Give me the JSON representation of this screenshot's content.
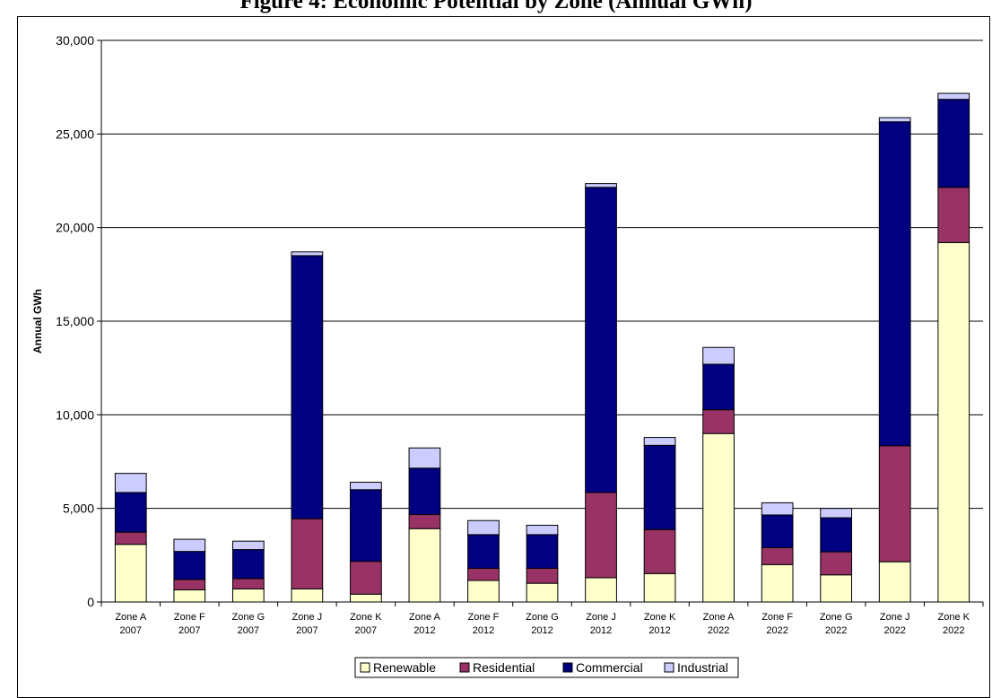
{
  "chart_data": {
    "type": "bar",
    "stacked": true,
    "title": "Figure 4: Economic Potential by Zone (Annual GWh)",
    "ylabel": "Annual GWh",
    "xlabel": "",
    "ylim": [
      0,
      30000
    ],
    "yticks": [
      "0",
      "5,000",
      "10,000",
      "15,000",
      "20,000",
      "25,000",
      "30,000"
    ],
    "grid": true,
    "legend": "bottom",
    "categories": [
      {
        "zone": "Zone A",
        "year": "2007"
      },
      {
        "zone": "Zone F",
        "year": "2007"
      },
      {
        "zone": "Zone G",
        "year": "2007"
      },
      {
        "zone": "Zone J",
        "year": "2007"
      },
      {
        "zone": "Zone K",
        "year": "2007"
      },
      {
        "zone": "Zone A",
        "year": "2012"
      },
      {
        "zone": "Zone F",
        "year": "2012"
      },
      {
        "zone": "Zone G",
        "year": "2012"
      },
      {
        "zone": "Zone J",
        "year": "2012"
      },
      {
        "zone": "Zone K",
        "year": "2012"
      },
      {
        "zone": "Zone A",
        "year": "2022"
      },
      {
        "zone": "Zone F",
        "year": "2022"
      },
      {
        "zone": "Zone G",
        "year": "2022"
      },
      {
        "zone": "Zone J",
        "year": "2022"
      },
      {
        "zone": "Zone K",
        "year": "2022"
      }
    ],
    "series": [
      {
        "name": "Renewable",
        "color": "#ffffcc",
        "values": [
          3080,
          650,
          700,
          700,
          420,
          3920,
          1150,
          1000,
          1300,
          1520,
          9000,
          2000,
          1450,
          2150,
          19200
        ]
      },
      {
        "name": "Residential",
        "color": "#993366",
        "values": [
          650,
          550,
          550,
          3750,
          1750,
          750,
          650,
          800,
          4550,
          2350,
          1270,
          900,
          1230,
          6200,
          2950
        ]
      },
      {
        "name": "Commercial",
        "color": "#000080",
        "values": [
          2120,
          1500,
          1550,
          14050,
          3830,
          2480,
          1800,
          1800,
          16300,
          4500,
          2430,
          1750,
          1820,
          17300,
          4700
        ]
      },
      {
        "name": "Industrial",
        "color": "#ccccff",
        "values": [
          1020,
          650,
          450,
          200,
          400,
          1080,
          750,
          500,
          200,
          420,
          900,
          650,
          500,
          220,
          320
        ]
      }
    ]
  }
}
